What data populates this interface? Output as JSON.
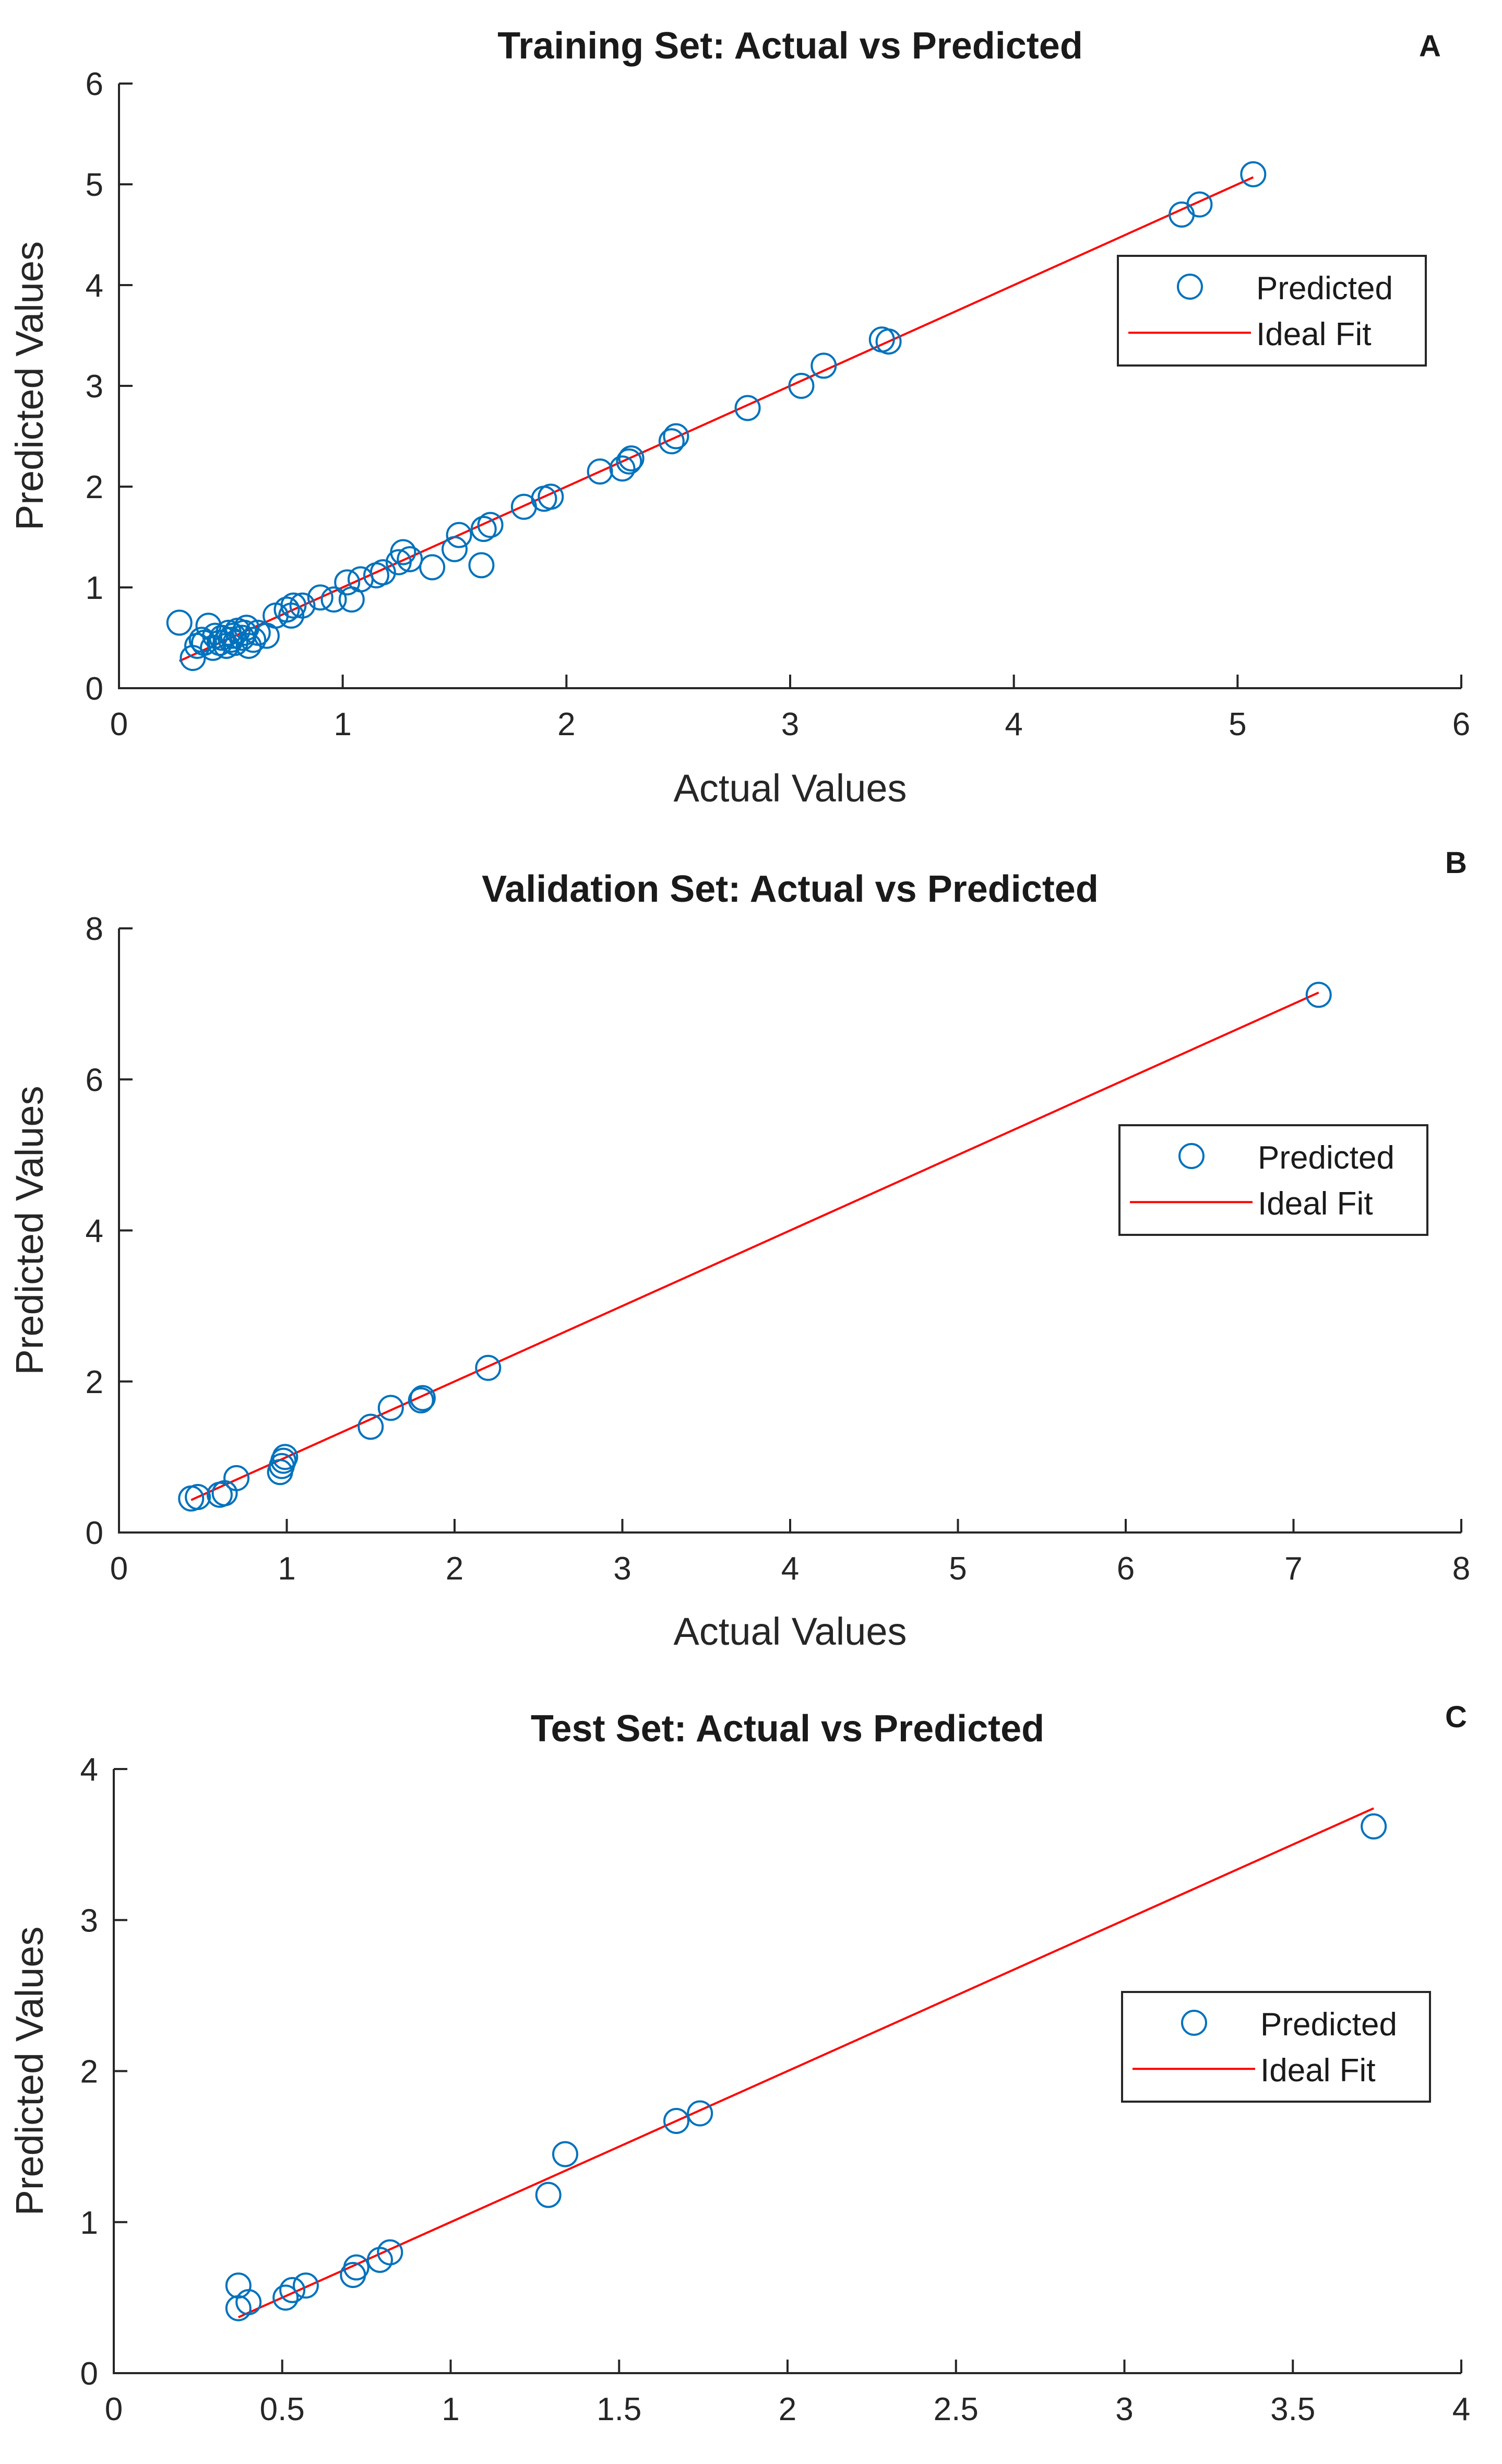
{
  "colors": {
    "predicted": "#0072bd",
    "ideal_fit": "#ff0000",
    "axis": "#262626",
    "background": "#ffffff"
  },
  "chart_data": [
    {
      "panel": "A",
      "type": "scatter",
      "title": "Training Set: Actual vs Predicted",
      "xlabel": "Actual Values",
      "ylabel": "Predicted Values",
      "xlim": [
        0,
        6
      ],
      "ylim": [
        0,
        6
      ],
      "xticks": [
        0,
        1,
        2,
        3,
        4,
        5,
        6
      ],
      "yticks": [
        0,
        1,
        2,
        3,
        4,
        5,
        6
      ],
      "xtick_labels": [
        "0",
        "1",
        "2",
        "3",
        "4",
        "5",
        "6"
      ],
      "ytick_labels": [
        "0",
        "1",
        "2",
        "3",
        "4",
        "5",
        "6"
      ],
      "legend": {
        "position": "right",
        "entries": [
          "Predicted",
          "Ideal Fit"
        ]
      },
      "series": [
        {
          "name": "Predicted",
          "kind": "scatter",
          "points": [
            [
              0.27,
              0.65
            ],
            [
              0.33,
              0.3
            ],
            [
              0.35,
              0.42
            ],
            [
              0.37,
              0.48
            ],
            [
              0.38,
              0.45
            ],
            [
              0.4,
              0.62
            ],
            [
              0.42,
              0.4
            ],
            [
              0.43,
              0.52
            ],
            [
              0.45,
              0.45
            ],
            [
              0.46,
              0.5
            ],
            [
              0.48,
              0.42
            ],
            [
              0.49,
              0.55
            ],
            [
              0.5,
              0.48
            ],
            [
              0.51,
              0.52
            ],
            [
              0.52,
              0.45
            ],
            [
              0.53,
              0.57
            ],
            [
              0.55,
              0.5
            ],
            [
              0.56,
              0.55
            ],
            [
              0.57,
              0.6
            ],
            [
              0.58,
              0.42
            ],
            [
              0.6,
              0.48
            ],
            [
              0.62,
              0.55
            ],
            [
              0.66,
              0.52
            ],
            [
              0.7,
              0.72
            ],
            [
              0.75,
              0.78
            ],
            [
              0.77,
              0.72
            ],
            [
              0.78,
              0.82
            ],
            [
              0.82,
              0.82
            ],
            [
              0.9,
              0.9
            ],
            [
              0.96,
              0.88
            ],
            [
              1.02,
              1.05
            ],
            [
              1.04,
              0.88
            ],
            [
              1.08,
              1.08
            ],
            [
              1.15,
              1.12
            ],
            [
              1.18,
              1.15
            ],
            [
              1.25,
              1.25
            ],
            [
              1.27,
              1.35
            ],
            [
              1.3,
              1.28
            ],
            [
              1.4,
              1.2
            ],
            [
              1.5,
              1.38
            ],
            [
              1.52,
              1.52
            ],
            [
              1.62,
              1.22
            ],
            [
              1.63,
              1.58
            ],
            [
              1.66,
              1.62
            ],
            [
              1.81,
              1.8
            ],
            [
              1.9,
              1.88
            ],
            [
              1.93,
              1.9
            ],
            [
              2.15,
              2.15
            ],
            [
              2.25,
              2.18
            ],
            [
              2.28,
              2.25
            ],
            [
              2.29,
              2.28
            ],
            [
              2.47,
              2.45
            ],
            [
              2.49,
              2.5
            ],
            [
              2.81,
              2.78
            ],
            [
              3.05,
              3.0
            ],
            [
              3.15,
              3.2
            ],
            [
              3.41,
              3.46
            ],
            [
              3.44,
              3.44
            ],
            [
              4.75,
              4.7
            ],
            [
              4.83,
              4.8
            ],
            [
              5.07,
              5.1
            ]
          ]
        },
        {
          "name": "Ideal Fit",
          "kind": "line",
          "x": [
            0.27,
            5.07
          ],
          "y": [
            0.27,
            5.07
          ]
        }
      ]
    },
    {
      "panel": "B",
      "type": "scatter",
      "title": "Validation Set: Actual vs Predicted",
      "xlabel": "Actual Values",
      "ylabel": "Predicted Values",
      "xlim": [
        0,
        8
      ],
      "ylim": [
        0,
        8
      ],
      "xticks": [
        0,
        1,
        2,
        3,
        4,
        5,
        6,
        7,
        8
      ],
      "yticks": [
        0,
        2,
        4,
        6,
        8
      ],
      "xtick_labels": [
        "0",
        "1",
        "2",
        "3",
        "4",
        "5",
        "6",
        "7",
        "8"
      ],
      "ytick_labels": [
        "0",
        "2",
        "4",
        "6",
        "8"
      ],
      "legend": {
        "position": "right",
        "entries": [
          "Predicted",
          "Ideal Fit"
        ]
      },
      "series": [
        {
          "name": "Predicted",
          "kind": "scatter",
          "points": [
            [
              0.43,
              0.45
            ],
            [
              0.47,
              0.47
            ],
            [
              0.6,
              0.5
            ],
            [
              0.63,
              0.52
            ],
            [
              0.7,
              0.72
            ],
            [
              0.96,
              0.8
            ],
            [
              0.97,
              0.88
            ],
            [
              0.98,
              0.95
            ],
            [
              0.99,
              1.0
            ],
            [
              1.5,
              1.4
            ],
            [
              1.62,
              1.65
            ],
            [
              1.8,
              1.75
            ],
            [
              1.81,
              1.78
            ],
            [
              2.2,
              2.18
            ],
            [
              7.15,
              7.12
            ]
          ]
        },
        {
          "name": "Ideal Fit",
          "kind": "line",
          "x": [
            0.43,
            7.15
          ],
          "y": [
            0.43,
            7.15
          ]
        }
      ]
    },
    {
      "panel": "C",
      "type": "scatter",
      "title": "Test Set: Actual vs Predicted",
      "xlabel": "",
      "ylabel": "Predicted Values",
      "xlim": [
        0,
        4
      ],
      "ylim": [
        0,
        4
      ],
      "xticks": [
        0,
        0.5,
        1,
        1.5,
        2,
        2.5,
        3,
        3.5,
        4
      ],
      "yticks": [
        0,
        1,
        2,
        3,
        4
      ],
      "xtick_labels": [
        "0",
        "0.5",
        "1",
        "1.5",
        "2",
        "2.5",
        "3",
        "3.5",
        "4"
      ],
      "ytick_labels": [
        "0",
        "1",
        "2",
        "3",
        "4"
      ],
      "legend": {
        "position": "right",
        "entries": [
          "Predicted",
          "Ideal Fit"
        ]
      },
      "series": [
        {
          "name": "Predicted",
          "kind": "scatter",
          "points": [
            [
              0.37,
              0.43
            ],
            [
              0.37,
              0.58
            ],
            [
              0.4,
              0.47
            ],
            [
              0.51,
              0.5
            ],
            [
              0.53,
              0.55
            ],
            [
              0.57,
              0.58
            ],
            [
              0.71,
              0.65
            ],
            [
              0.72,
              0.7
            ],
            [
              0.79,
              0.75
            ],
            [
              0.82,
              0.8
            ],
            [
              1.29,
              1.18
            ],
            [
              1.34,
              1.45
            ],
            [
              1.67,
              1.67
            ],
            [
              1.74,
              1.72
            ],
            [
              3.74,
              3.62
            ]
          ]
        },
        {
          "name": "Ideal Fit",
          "kind": "line",
          "x": [
            0.37,
            3.74
          ],
          "y": [
            0.37,
            3.74
          ]
        }
      ]
    }
  ]
}
